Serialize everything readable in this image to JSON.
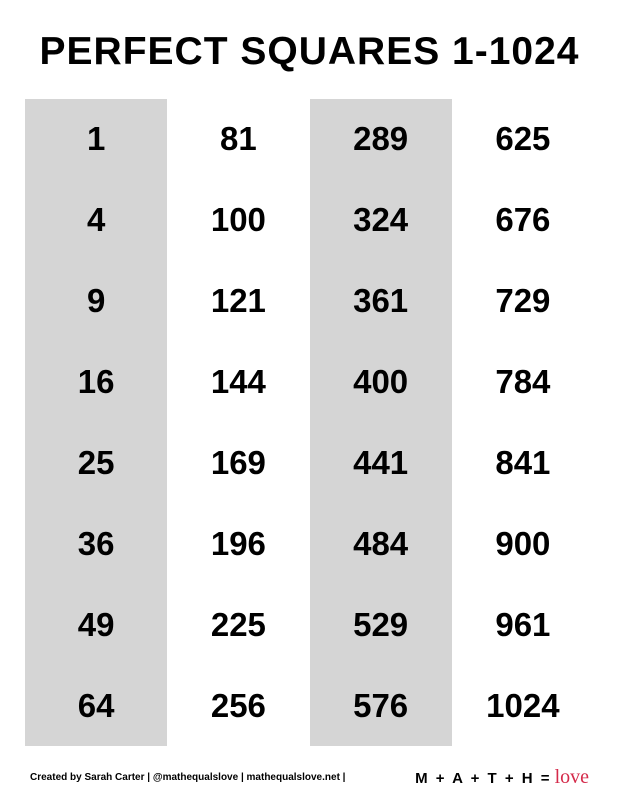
{
  "title": "PERFECT SQUARES 1-1024",
  "table": {
    "type": "table",
    "columns": [
      {
        "values": [
          "1",
          "4",
          "9",
          "16",
          "25",
          "36",
          "49",
          "64"
        ],
        "shaded": true
      },
      {
        "values": [
          "81",
          "100",
          "121",
          "144",
          "169",
          "196",
          "225",
          "256"
        ],
        "shaded": false
      },
      {
        "values": [
          "289",
          "324",
          "361",
          "400",
          "441",
          "484",
          "529",
          "576"
        ],
        "shaded": true
      },
      {
        "values": [
          "625",
          "676",
          "729",
          "784",
          "841",
          "900",
          "961",
          "1024"
        ],
        "shaded": false
      }
    ],
    "shaded_bg_color": "#d5d5d5",
    "unshaded_bg_color": "#ffffff",
    "text_color": "#000000",
    "cell_fontsize": 33,
    "cell_fontweight": 900,
    "rows": 8,
    "cols": 4
  },
  "footer": {
    "credit": "Created by Sarah Carter | @mathequalslove | mathequalslove.net |",
    "logo_text": "M + A + T + H =",
    "logo_script": "love",
    "logo_script_color": "#d42a4a"
  },
  "colors": {
    "background": "#ffffff",
    "text": "#000000",
    "shaded_column": "#d5d5d5",
    "accent": "#d42a4a"
  }
}
